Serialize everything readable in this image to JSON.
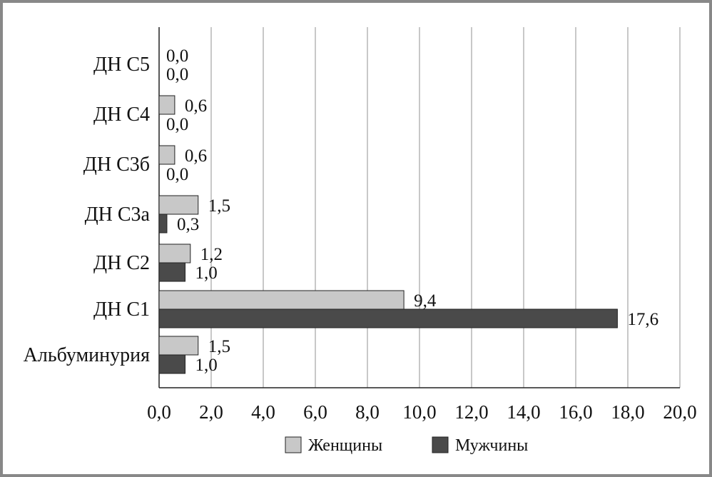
{
  "chart_data": {
    "type": "bar",
    "orientation": "horizontal",
    "categories": [
      "ДН С5",
      "ДН С4",
      "ДН С3б",
      "ДН С3а",
      "ДН С2",
      "ДН С1",
      "Альбуминурия"
    ],
    "series": [
      {
        "name": "Женщины",
        "color": "#c8c8c8",
        "values": [
          0.0,
          0.6,
          0.6,
          1.5,
          1.2,
          9.4,
          1.5
        ],
        "labels": [
          "0,0",
          "0,6",
          "0,6",
          "1,5",
          "1,2",
          "9,4",
          "1,5"
        ]
      },
      {
        "name": "Мужчины",
        "color": "#4a4a4a",
        "values": [
          0.0,
          0.0,
          0.0,
          0.3,
          1.0,
          17.6,
          1.0
        ],
        "labels": [
          "0,0",
          "0,0",
          "0,0",
          "0,3",
          "1,0",
          "17,6",
          "1,0"
        ]
      }
    ],
    "xlim": [
      0,
      20
    ],
    "x_ticks": [
      "0,0",
      "2,0",
      "4,0",
      "6,0",
      "8,0",
      "10,0",
      "12,0",
      "14,0",
      "16,0",
      "18,0",
      "20,0"
    ],
    "grid": true,
    "legend": "bottom",
    "title": "",
    "xlabel": "",
    "ylabel": ""
  }
}
